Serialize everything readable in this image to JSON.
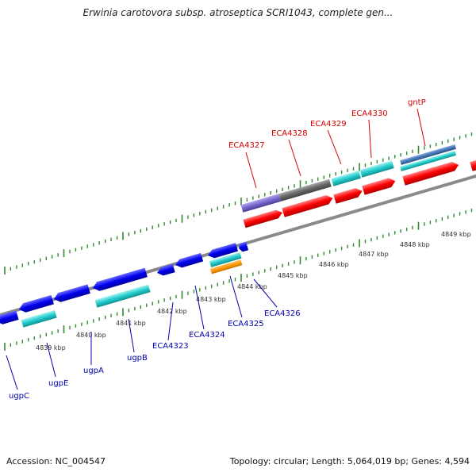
{
  "title": "Erwinia carotovora subsp. atroseptica SCRI1043, complete gen...",
  "accession": "Accession: NC_004547",
  "topology": "Topology: circular; Length: 5,064,019 bp; Genes: 4,594",
  "colors": {
    "forward_cds": "#ff0000",
    "reverse_cds": "#0000ee",
    "cyan_feature": "#22cccc",
    "purple_feature": "#7766cc",
    "gray_feature": "#666666",
    "orange_feature": "#ff9900",
    "steelblue_feature": "#4477bb",
    "tick_green": "#2e8b2e",
    "fwd_label": "#d40000",
    "rev_label": "#0000b0"
  },
  "scale_ticks": [
    "4839 kbp",
    "4840 kbp",
    "4841 kbp",
    "4842 kbp",
    "4843 kbp",
    "4844 kbp",
    "4845 kbp",
    "4846 kbp",
    "4847 kbp",
    "4848 kbp",
    "4849 kbp"
  ],
  "forward_genes": [
    "ECA4327",
    "ECA4328",
    "ECA4329",
    "ECA4330",
    "gntP"
  ],
  "reverse_genes": [
    "ugpC",
    "ugpE",
    "ugpA",
    "ugpB",
    "ECA4323",
    "ECA4324",
    "ECA4325",
    "ECA4326"
  ]
}
